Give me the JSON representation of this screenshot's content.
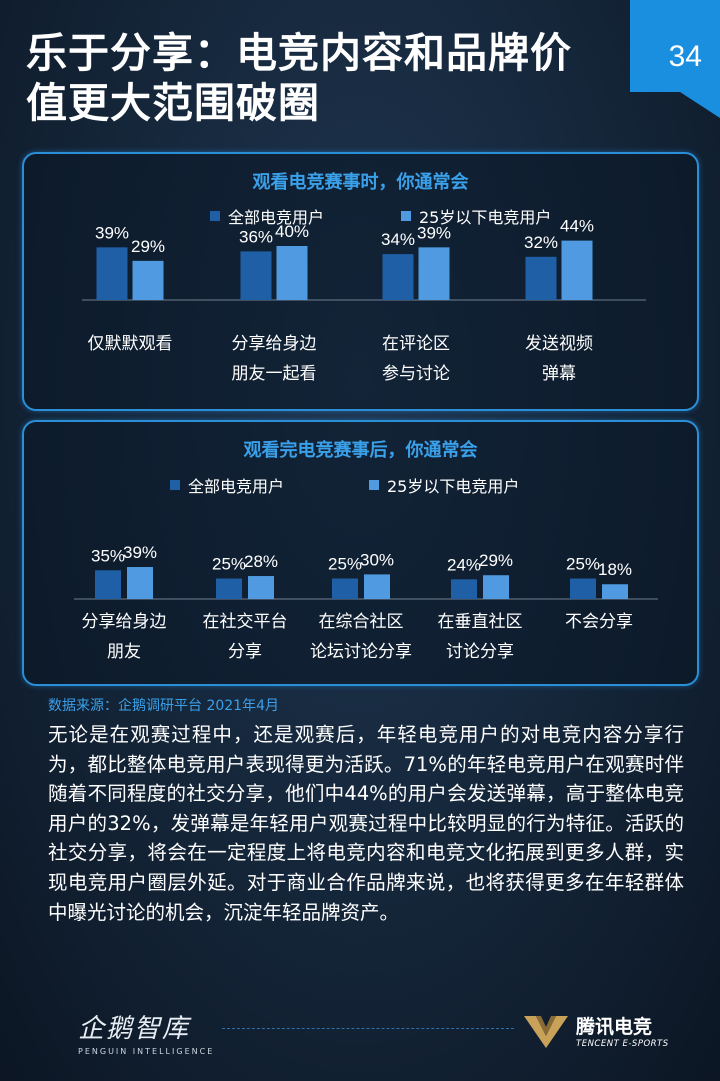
{
  "header": {
    "title_line1": "乐于分享：电竞内容和品牌价",
    "title_line2": "值更大范围破圈",
    "page_number": "34"
  },
  "colors": {
    "dark_bar": "#1f5fa6",
    "light_bar": "#4f9ae0",
    "accent": "#3aa0ea"
  },
  "chart_data": [
    {
      "type": "bar",
      "title": "观看电竞赛事时，你通常会",
      "categories": [
        "仅默默观看",
        "分享给身边\n朋友一起看",
        "在评论区\n参与讨论",
        "发送视频\n弹幕"
      ],
      "series": [
        {
          "name": "全部电竞用户",
          "values": [
            39,
            36,
            34,
            32
          ]
        },
        {
          "name": "25岁以下电竞用户",
          "values": [
            29,
            40,
            39,
            44
          ]
        }
      ],
      "value_labels": [
        [
          "39%",
          "36%",
          "34%",
          "32%"
        ],
        [
          "29%",
          "40%",
          "39%",
          "44%"
        ]
      ],
      "legend_position": "top"
    },
    {
      "type": "bar",
      "title": "观看完电竞赛事后，你通常会",
      "categories": [
        "分享给身边\n朋友",
        "在社交平台\n分享",
        "在综合社区\n论坛讨论分享",
        "在垂直社区\n讨论分享",
        "不会分享"
      ],
      "series": [
        {
          "name": "全部电竞用户",
          "values": [
            35,
            25,
            25,
            24,
            25
          ]
        },
        {
          "name": "25岁以下电竞用户",
          "values": [
            39,
            28,
            30,
            29,
            18
          ]
        }
      ],
      "value_labels": [
        [
          "35%",
          "25%",
          "25%",
          "24%",
          "25%"
        ],
        [
          "39%",
          "28%",
          "30%",
          "29%",
          "18%"
        ]
      ],
      "legend_position": "top"
    }
  ],
  "source": "数据来源：企鹅调研平台 2021年4月",
  "paragraph": "无论是在观赛过程中，还是观赛后，年轻电竞用户的对电竞内容分享行为，都比整体电竞用户表现得更为活跃。71%的年轻电竞用户在观赛时伴随着不同程度的社交分享，他们中44%的用户会发送弹幕，高于整体电竞用户的32%，发弹幕是年轻用户观赛过程中比较明显的行为特征。活跃的社交分享，将会在一定程度上将电竞内容和电竞文化拓展到更多人群，实现电竞用户圈层外延。对于商业合作品牌来说，也将获得更多在年轻群体中曝光讨论的机会，沉淀年轻品牌资产。",
  "footer": {
    "left_brand": "企鹅智库",
    "left_sub": "PENGUIN INTELLIGENCE",
    "right_brand": "腾讯电竞",
    "right_sub": "TENCENT E-SPORTS"
  }
}
